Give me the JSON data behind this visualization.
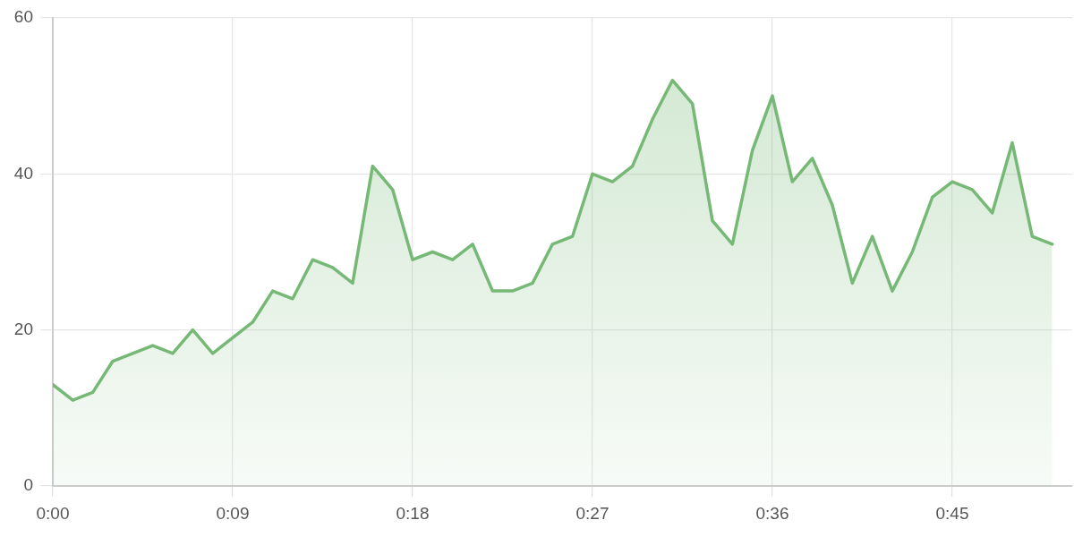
{
  "chart_data": {
    "type": "area",
    "color": "#76b876",
    "marker": "none",
    "grid": true,
    "x": [
      0,
      1,
      2,
      3,
      4,
      5,
      6,
      7,
      8,
      9,
      10,
      11,
      12,
      13,
      14,
      15,
      16,
      17,
      18,
      19,
      20,
      21,
      22,
      23,
      24,
      25,
      26,
      27,
      28,
      29,
      30,
      31,
      32,
      33,
      34,
      35,
      36,
      37,
      38,
      39,
      40,
      41,
      42,
      43,
      44,
      45,
      46,
      47,
      48,
      49,
      50
    ],
    "values": [
      13,
      11,
      12,
      16,
      17,
      18,
      17,
      20,
      17,
      19,
      21,
      25,
      24,
      29,
      28,
      26,
      41,
      38,
      29,
      30,
      29,
      31,
      25,
      25,
      26,
      31,
      32,
      40,
      39,
      41,
      47,
      52,
      49,
      34,
      31,
      43,
      50,
      39,
      42,
      36,
      26,
      32,
      25,
      30,
      37,
      39,
      38,
      35,
      44,
      32,
      31
    ],
    "xlim": [
      0,
      51
    ],
    "xticks": [
      {
        "value": 0,
        "label": "0:00"
      },
      {
        "value": 9,
        "label": "0:09"
      },
      {
        "value": 18,
        "label": "0:18"
      },
      {
        "value": 27,
        "label": "0:27"
      },
      {
        "value": 36,
        "label": "0:36"
      },
      {
        "value": 45,
        "label": "0:45"
      }
    ],
    "ylim": [
      0,
      60
    ],
    "yticks": [
      0,
      20,
      40,
      60
    ]
  }
}
